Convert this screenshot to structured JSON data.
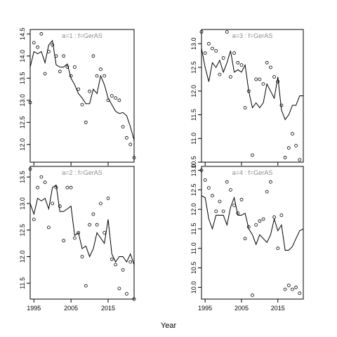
{
  "figure": {
    "xlabel": "Year"
  },
  "chart_data": [
    {
      "type": "line",
      "title": "a=1 : f=GerAS",
      "xlim": [
        1994,
        2022
      ],
      "ylim": [
        11.6,
        14.6
      ],
      "yticks": [
        12.0,
        12.5,
        13.0,
        13.5,
        14.0,
        14.5
      ],
      "ytick_labels": [
        "12.0",
        "12.5",
        "13.0",
        "13.5",
        "14.0",
        "14.5"
      ],
      "xticks": [
        1995,
        2005,
        2015
      ],
      "xtick_labels": [],
      "series": [
        {
          "style": "line",
          "x": [
            1994,
            1995,
            1996,
            1997,
            1998,
            1999,
            2000,
            2001,
            2002,
            2003,
            2004,
            2005,
            2006,
            2007,
            2008,
            2009,
            2010,
            2011,
            2012,
            2013,
            2014,
            2015,
            2016,
            2017,
            2018,
            2019,
            2020,
            2021,
            2022
          ],
          "y": [
            13.75,
            14.1,
            14.05,
            14.1,
            13.85,
            14.25,
            14.35,
            13.8,
            13.75,
            13.75,
            13.82,
            13.5,
            13.35,
            13.15,
            13.05,
            12.92,
            12.92,
            13.25,
            13.15,
            13.55,
            13.35,
            13.05,
            12.9,
            12.75,
            12.7,
            12.72,
            12.65,
            12.4,
            12.1
          ]
        },
        {
          "style": "points",
          "x": [
            1994,
            1995,
            1996,
            1997,
            1998,
            1999,
            2000,
            2001,
            2002,
            2003,
            2004,
            2005,
            2006,
            2007,
            2008,
            2009,
            2010,
            2011,
            2012,
            2013,
            2014,
            2015,
            2016,
            2017,
            2018,
            2019,
            2020,
            2021,
            2022
          ],
          "y": [
            12.95,
            14.3,
            14.2,
            14.5,
            13.6,
            14.1,
            14.25,
            14.0,
            13.65,
            14.0,
            13.75,
            13.55,
            13.75,
            13.25,
            12.9,
            12.5,
            13.2,
            14.0,
            13.55,
            13.7,
            13.55,
            13.0,
            13.1,
            13.05,
            13.0,
            12.4,
            12.15,
            12.0,
            11.7
          ]
        }
      ]
    },
    {
      "type": "line",
      "title": "a=3 : f=GerAS",
      "xlim": [
        1994,
        2022
      ],
      "ylim": [
        10.5,
        13.3
      ],
      "yticks": [
        10.5,
        11.0,
        11.5,
        12.0,
        12.5,
        13.0
      ],
      "ytick_labels": [
        "10.5",
        "11.0",
        "11.5",
        "12.0",
        "12.5",
        "13.0"
      ],
      "xticks": [
        1995,
        2005,
        2015
      ],
      "xtick_labels": [],
      "series": [
        {
          "style": "line",
          "x": [
            1994,
            1995,
            1996,
            1997,
            1998,
            1999,
            2000,
            2001,
            2002,
            2003,
            2004,
            2005,
            2006,
            2007,
            2008,
            2009,
            2010,
            2011,
            2012,
            2013,
            2014,
            2015,
            2016,
            2017,
            2018,
            2019,
            2020,
            2021,
            2022
          ],
          "y": [
            12.9,
            12.5,
            12.2,
            12.6,
            12.5,
            12.65,
            12.4,
            12.6,
            12.85,
            12.4,
            12.45,
            12.4,
            12.55,
            12.0,
            11.65,
            11.75,
            11.65,
            11.75,
            12.15,
            12.0,
            11.85,
            12.3,
            11.6,
            11.4,
            11.5,
            11.7,
            11.7,
            11.9,
            11.9
          ]
        },
        {
          "style": "points",
          "x": [
            1994,
            1995,
            1996,
            1997,
            1998,
            1999,
            2000,
            2001,
            2002,
            2003,
            2004,
            2005,
            2006,
            2007,
            2008,
            2009,
            2010,
            2011,
            2012,
            2013,
            2014,
            2015,
            2016,
            2017,
            2018,
            2019,
            2020,
            2021,
            2022
          ],
          "y": [
            13.25,
            12.8,
            13.0,
            12.9,
            12.85,
            12.35,
            12.7,
            13.25,
            12.3,
            12.8,
            12.6,
            12.55,
            11.65,
            12.0,
            10.65,
            12.25,
            12.25,
            12.15,
            12.6,
            12.5,
            12.3,
            12.2,
            11.7,
            10.6,
            10.8,
            11.1,
            10.85,
            10.55,
            null
          ]
        }
      ]
    },
    {
      "type": "line",
      "title": "a=2 : f=GerAS",
      "xlim": [
        1994,
        2022
      ],
      "ylim": [
        11.2,
        13.7
      ],
      "yticks": [
        11.5,
        12.0,
        12.5,
        13.0,
        13.5
      ],
      "ytick_labels": [
        "11.5",
        "12.0",
        "12.5",
        "13.0",
        "13.5"
      ],
      "xticks": [
        1995,
        2005,
        2015
      ],
      "xtick_labels": [
        "1995",
        "2005",
        "2015"
      ],
      "series": [
        {
          "style": "line",
          "x": [
            1994,
            1995,
            1996,
            1997,
            1998,
            1999,
            2000,
            2001,
            2002,
            2003,
            2004,
            2005,
            2006,
            2007,
            2008,
            2009,
            2010,
            2011,
            2012,
            2013,
            2014,
            2015,
            2016,
            2017,
            2018,
            2019,
            2020,
            2021,
            2022
          ],
          "y": [
            13.0,
            12.8,
            13.1,
            13.05,
            13.1,
            12.9,
            13.3,
            13.35,
            12.85,
            12.85,
            12.9,
            12.95,
            12.4,
            12.45,
            12.15,
            12.2,
            12.0,
            12.15,
            12.45,
            12.35,
            12.25,
            12.7,
            12.05,
            11.9,
            12.0,
            12.0,
            11.9,
            12.05,
            11.85
          ]
        },
        {
          "style": "points",
          "x": [
            1994,
            1995,
            1996,
            1997,
            1998,
            1999,
            2000,
            2001,
            2002,
            2003,
            2004,
            2005,
            2006,
            2007,
            2008,
            2009,
            2010,
            2011,
            2012,
            2013,
            2014,
            2015,
            2016,
            2017,
            2018,
            2019,
            2020,
            2021,
            2022
          ],
          "y": [
            13.65,
            12.7,
            13.3,
            13.5,
            13.4,
            12.55,
            13.0,
            13.3,
            12.95,
            12.3,
            13.3,
            13.3,
            12.35,
            12.45,
            12.0,
            11.45,
            12.6,
            12.8,
            12.6,
            13.0,
            12.45,
            13.1,
            11.95,
            11.85,
            11.4,
            11.75,
            11.3,
            11.9,
            11.2
          ]
        }
      ]
    },
    {
      "type": "line",
      "title": "a=4 : f=GerAS",
      "xlim": [
        1994,
        2022
      ],
      "ylim": [
        9.7,
        13.1
      ],
      "yticks": [
        10.0,
        10.5,
        11.0,
        11.5,
        12.0,
        12.5,
        13.0
      ],
      "ytick_labels": [
        "10.0",
        "10.5",
        "11.0",
        "11.5",
        "12.0",
        "12.5",
        "13.0"
      ],
      "xticks": [
        1995,
        2005,
        2015
      ],
      "xtick_labels": [
        "1995",
        "2005",
        "2015"
      ],
      "series": [
        {
          "style": "line",
          "x": [
            1994,
            1995,
            1996,
            1997,
            1998,
            1999,
            2000,
            2001,
            2002,
            2003,
            2004,
            2005,
            2006,
            2007,
            2008,
            2009,
            2010,
            2011,
            2012,
            2013,
            2014,
            2015,
            2016,
            2017,
            2018,
            2019,
            2020,
            2021,
            2022
          ],
          "y": [
            12.35,
            12.3,
            11.75,
            11.5,
            11.85,
            11.85,
            11.85,
            11.6,
            12.05,
            12.3,
            11.85,
            11.85,
            11.9,
            11.5,
            11.35,
            11.1,
            11.35,
            11.25,
            11.15,
            11.35,
            11.75,
            11.45,
            11.6,
            10.95,
            10.95,
            11.05,
            11.25,
            11.45,
            11.5
          ]
        },
        {
          "style": "points",
          "x": [
            1994,
            1995,
            1996,
            1997,
            1998,
            1999,
            2000,
            2001,
            2002,
            2003,
            2004,
            2005,
            2006,
            2007,
            2008,
            2009,
            2010,
            2011,
            2012,
            2013,
            2014,
            2015,
            2016,
            2017,
            2018,
            2019,
            2020,
            2021,
            2022
          ],
          "y": [
            13.0,
            12.75,
            12.55,
            12.35,
            11.95,
            12.2,
            11.95,
            12.7,
            12.5,
            12.1,
            11.9,
            12.25,
            11.25,
            11.55,
            9.8,
            11.6,
            11.7,
            11.75,
            12.45,
            12.7,
            11.8,
            11.0,
            11.85,
            9.95,
            10.05,
            9.95,
            10.0,
            9.85,
            null
          ]
        }
      ]
    }
  ]
}
